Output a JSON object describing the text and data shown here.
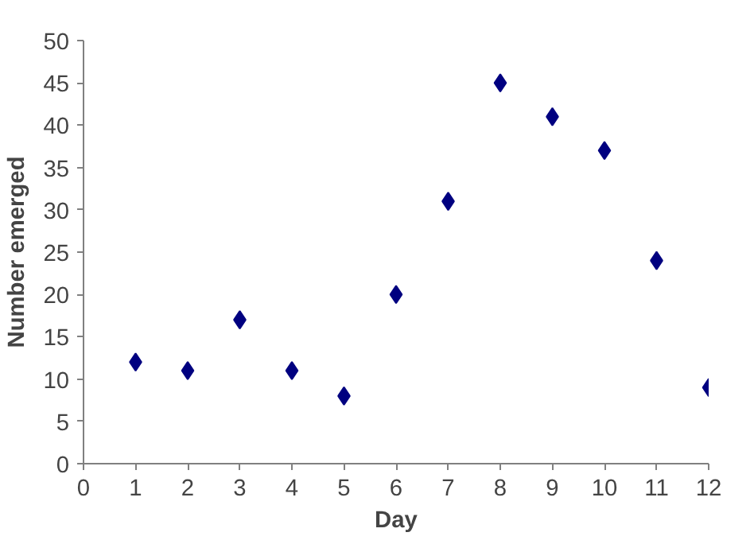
{
  "chart_data": {
    "type": "scatter",
    "xlabel": "Day",
    "ylabel": "Number emerged",
    "x": [
      1,
      2,
      3,
      4,
      5,
      6,
      7,
      8,
      9,
      10,
      11,
      12
    ],
    "values": [
      12,
      11,
      17,
      11,
      8,
      20,
      31,
      45,
      41,
      37,
      24,
      9
    ],
    "color": "#000080",
    "marker": "diamond",
    "xlim": [
      0,
      12
    ],
    "ylim": [
      0,
      50
    ],
    "xticks": [
      0,
      1,
      2,
      3,
      4,
      5,
      6,
      7,
      8,
      9,
      10,
      11,
      12
    ],
    "yticks": [
      0,
      5,
      10,
      15,
      20,
      25,
      30,
      35,
      40,
      45,
      50
    ],
    "grid": false
  }
}
